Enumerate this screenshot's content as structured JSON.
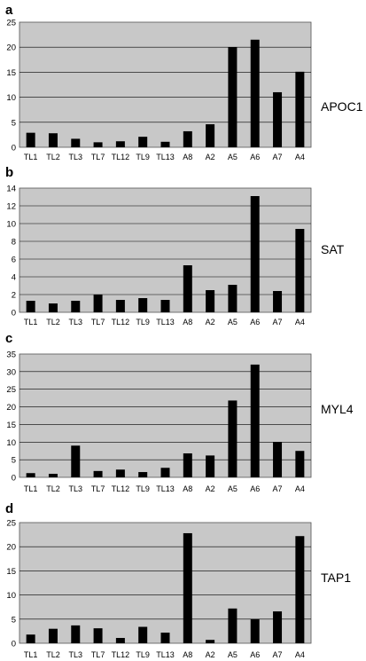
{
  "colors": {
    "plot_background": "#c8c8c8",
    "bar": "#000000",
    "gridline": "#000000",
    "page_background": "#ffffff"
  },
  "chart_data": [
    {
      "type": "bar",
      "panel": "a",
      "label": "APOC1",
      "categories": [
        "TL1",
        "TL2",
        "TL3",
        "TL7",
        "TL12",
        "TL9",
        "TL13",
        "A8",
        "A2",
        "A5",
        "A6",
        "A7",
        "A4"
      ],
      "values": [
        2.9,
        2.8,
        1.7,
        1.0,
        1.2,
        2.1,
        1.1,
        3.2,
        4.6,
        20.0,
        21.5,
        11.0,
        15.1
      ],
      "ylim": [
        0,
        25
      ],
      "yticks": [
        0,
        5,
        10,
        15,
        20,
        25
      ],
      "grid": true
    },
    {
      "type": "bar",
      "panel": "b",
      "label": "SAT",
      "categories": [
        "TL1",
        "TL2",
        "TL3",
        "TL7",
        "TL12",
        "TL9",
        "TL13",
        "A8",
        "A2",
        "A5",
        "A6",
        "A7",
        "A4"
      ],
      "values": [
        1.3,
        1.0,
        1.3,
        2.0,
        1.4,
        1.6,
        1.4,
        5.3,
        2.5,
        3.1,
        13.1,
        2.4,
        9.4
      ],
      "ylim": [
        0,
        14
      ],
      "yticks": [
        0,
        2,
        4,
        6,
        8,
        10,
        12,
        14
      ],
      "grid": true
    },
    {
      "type": "bar",
      "panel": "c",
      "label": "MYL4",
      "categories": [
        "TL1",
        "TL2",
        "TL3",
        "TL7",
        "TL12",
        "TL9",
        "TL13",
        "A8",
        "A2",
        "A5",
        "A6",
        "A7",
        "A4"
      ],
      "values": [
        1.2,
        1.0,
        9.0,
        1.8,
        2.2,
        1.5,
        2.7,
        6.8,
        6.2,
        21.8,
        32.0,
        10.0,
        7.5
      ],
      "ylim": [
        0,
        35
      ],
      "yticks": [
        0,
        5,
        10,
        15,
        20,
        25,
        30,
        35
      ],
      "grid": true
    },
    {
      "type": "bar",
      "panel": "d",
      "label": "TAP1",
      "categories": [
        "TL1",
        "TL2",
        "TL3",
        "TL7",
        "TL12",
        "TL9",
        "TL13",
        "A8",
        "A2",
        "A5",
        "A6",
        "A7",
        "A4"
      ],
      "values": [
        1.8,
        3.0,
        3.7,
        3.1,
        1.1,
        3.4,
        2.2,
        22.8,
        0.7,
        7.2,
        5.0,
        6.6,
        22.2
      ],
      "ylim": [
        0,
        25
      ],
      "yticks": [
        0,
        5,
        10,
        15,
        20,
        25
      ],
      "grid": true
    }
  ]
}
